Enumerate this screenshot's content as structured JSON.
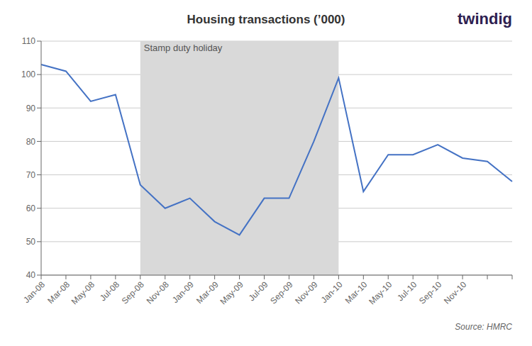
{
  "chart_data": {
    "type": "line",
    "title": "Housing transactions (’000)",
    "categories": [
      "Jan-08",
      "Mar-08",
      "May-08",
      "Jul-08",
      "Sep-08",
      "Nov-08",
      "Jan-09",
      "Mar-09",
      "May-09",
      "Jul-09",
      "Sep-09",
      "Nov-09",
      "Jan-10",
      "Mar-10",
      "May-10",
      "Jul-10",
      "Sep-10",
      "Nov-10",
      null,
      null
    ],
    "values": [
      103,
      101,
      92,
      94,
      67,
      60,
      63,
      56,
      52,
      63,
      63,
      80,
      99,
      65,
      76,
      76,
      79,
      75,
      74,
      68
    ],
    "color": "#4472c4",
    "ylim": [
      40,
      110
    ],
    "yticks": [
      40,
      50,
      60,
      70,
      80,
      90,
      100,
      110
    ],
    "grid": "y",
    "shaded_regions": [
      {
        "start": "Sep-08",
        "end": "Jan-10",
        "label": "Stamp duty holiday",
        "color": "#d9d9d9"
      }
    ],
    "annotations": [
      {
        "text": "Source: HMRC"
      },
      {
        "text": "twindig",
        "color": "#2d2050"
      }
    ]
  }
}
